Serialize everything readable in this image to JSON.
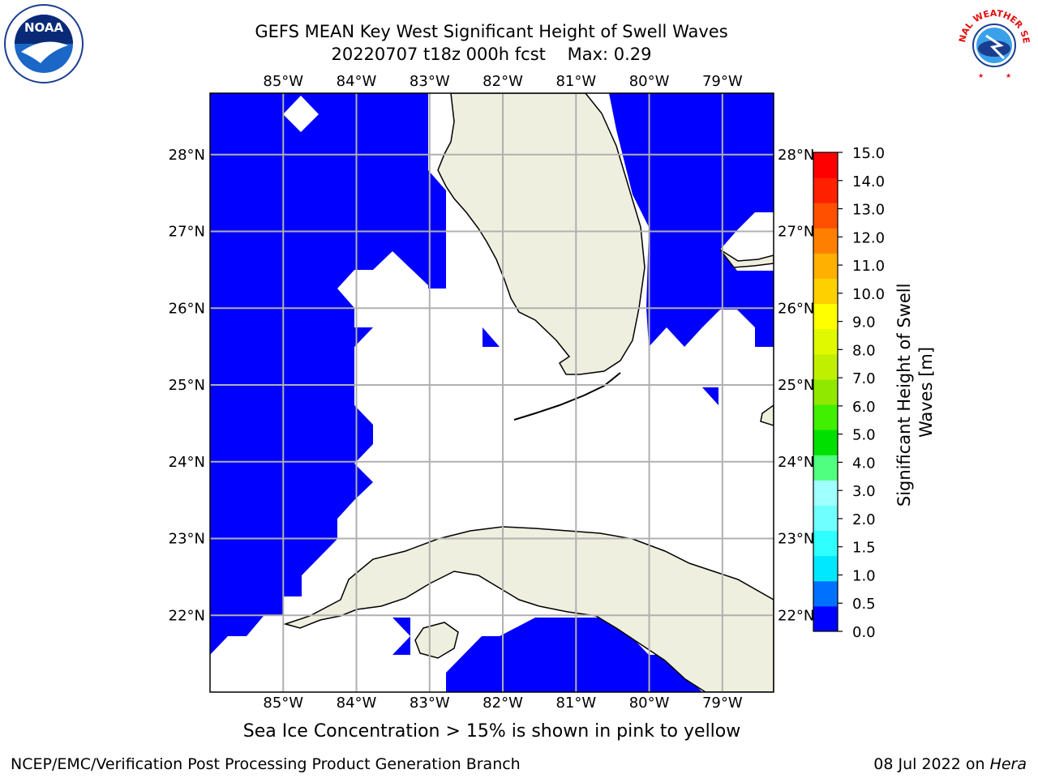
{
  "title": {
    "line1": "GEFS MEAN Key West Significant Height of Swell Waves",
    "line2": "20220707 t18z 000h fcst",
    "max_label": "Max: 0.29"
  },
  "map": {
    "lon_labels": [
      "85°W",
      "84°W",
      "83°W",
      "82°W",
      "81°W",
      "80°W",
      "79°W"
    ],
    "lon_values": [
      -85,
      -84,
      -83,
      -82,
      -81,
      -80,
      -79
    ],
    "lat_labels": [
      "28°N",
      "27°N",
      "26°N",
      "25°N",
      "24°N",
      "23°N",
      "22°N"
    ],
    "lat_values": [
      28,
      27,
      26,
      25,
      24,
      23,
      22
    ],
    "lon_range": [
      -86.0,
      -78.3
    ],
    "lat_range": [
      21.0,
      28.8
    ],
    "ocean_fill": "#0000ff",
    "land_fill": "#efefdf",
    "grid_color": "#b0b0b0"
  },
  "colorbar": {
    "label_line1": "Significant Height of Swell",
    "label_line2": "Waves [m]",
    "ticks": [
      "0.0",
      "0.5",
      "1.0",
      "1.5",
      "2.0",
      "3.0",
      "4.0",
      "5.0",
      "6.0",
      "7.0",
      "8.0",
      "9.0",
      "10.0",
      "11.0",
      "12.0",
      "13.0",
      "14.0",
      "15.0"
    ],
    "colors": [
      "#0000ff",
      "#0070ff",
      "#00e8ff",
      "#30ffff",
      "#70ffff",
      "#a0ffff",
      "#50ff80",
      "#00e000",
      "#40f000",
      "#90e800",
      "#c0f000",
      "#e0f800",
      "#ffff00",
      "#ffd000",
      "#ffb000",
      "#ff8000",
      "#ff5000",
      "#ff2000",
      "#ff0000"
    ]
  },
  "note": "Sea Ice Concentration > 15% is shown in pink to yellow",
  "footer": {
    "left": "NCEP/EMC/Verification Post Processing Product Generation Branch",
    "right_prefix": "08 Jul 2022 on ",
    "right_host": "Hera"
  },
  "logos": {
    "noaa": "NOAA",
    "nws": "NATIONAL WEATHER SERVICE"
  }
}
